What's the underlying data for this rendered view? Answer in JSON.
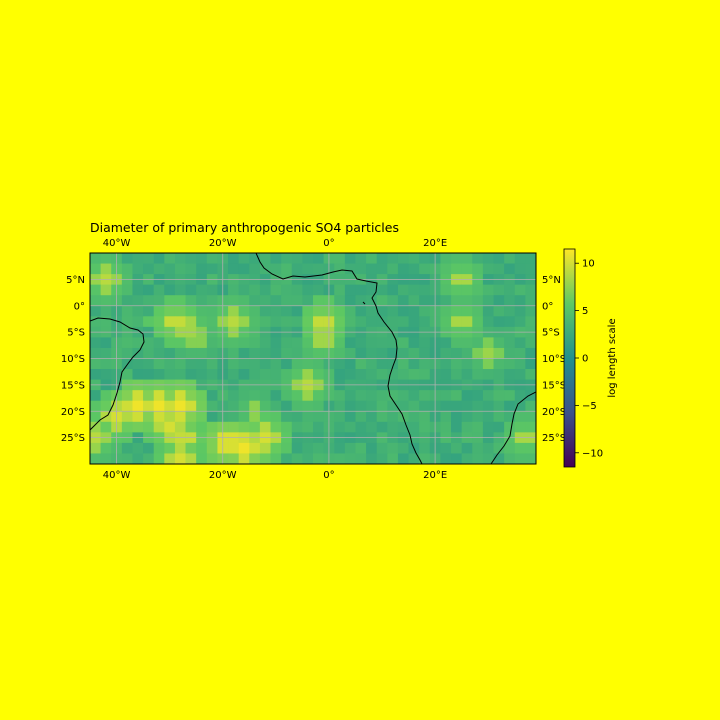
{
  "figure": {
    "background": "#ffff00",
    "title": "Diameter of primary anthropogenic SO4 particles"
  },
  "map": {
    "projection": "PlateCarree",
    "extent": {
      "lon": [
        -45,
        39
      ],
      "lat": [
        -30,
        10
      ]
    },
    "grid_lines": true,
    "grid_color": "#b0b0b0",
    "coastline_color": "#000000",
    "cell_size_deg": 2,
    "lon_ticks": [
      {
        "value": -40,
        "label": "40°W"
      },
      {
        "value": -20,
        "label": "20°W"
      },
      {
        "value": 0,
        "label": "0°"
      },
      {
        "value": 20,
        "label": "20°E"
      }
    ],
    "lat_ticks": [
      {
        "value": 5,
        "label": "5°N"
      },
      {
        "value": 0,
        "label": "0°"
      },
      {
        "value": -5,
        "label": "5°S"
      },
      {
        "value": -10,
        "label": "10°S"
      },
      {
        "value": -15,
        "label": "15°S"
      },
      {
        "value": -20,
        "label": "20°S"
      },
      {
        "value": -25,
        "label": "25°S"
      }
    ],
    "field_base_value": 3,
    "hotspots": [
      {
        "lon": -42,
        "lat": 5,
        "value": 9
      },
      {
        "lon": -33,
        "lat": -3,
        "value": 6
      },
      {
        "lon": -29,
        "lat": -3,
        "value": 10
      },
      {
        "lon": -27,
        "lat": -4,
        "value": 9
      },
      {
        "lon": -25,
        "lat": -6,
        "value": 8
      },
      {
        "lon": -18,
        "lat": -3,
        "value": 9
      },
      {
        "lon": -1,
        "lat": -3,
        "value": 10
      },
      {
        "lon": -1,
        "lat": -6,
        "value": 9
      },
      {
        "lon": 25,
        "lat": 5,
        "value": 9
      },
      {
        "lon": 25,
        "lat": -3,
        "value": 9
      },
      {
        "lon": 30,
        "lat": -9,
        "value": 8
      },
      {
        "lon": -4,
        "lat": -15,
        "value": 9
      },
      {
        "lon": -36,
        "lat": -19,
        "value": 11
      },
      {
        "lon": -32,
        "lat": -19,
        "value": 11
      },
      {
        "lon": -28,
        "lat": -19,
        "value": 11
      },
      {
        "lon": -40,
        "lat": -21,
        "value": 10
      },
      {
        "lon": -30,
        "lat": -23,
        "value": 10
      },
      {
        "lon": -27,
        "lat": -25,
        "value": 10
      },
      {
        "lon": -19,
        "lat": -26,
        "value": 11
      },
      {
        "lon": -16,
        "lat": -27,
        "value": 11
      },
      {
        "lon": -12,
        "lat": -25,
        "value": 10
      },
      {
        "lon": -28,
        "lat": -29,
        "value": 10
      },
      {
        "lon": -44,
        "lat": -25,
        "value": 9
      },
      {
        "lon": -14,
        "lat": -20,
        "value": 8
      },
      {
        "lon": 37,
        "lat": -25,
        "value": 9
      }
    ]
  },
  "colorbar": {
    "label": "log length scale",
    "colormap": "viridis",
    "range": [
      -11.5,
      11.5
    ],
    "ticks": [
      {
        "value": 10,
        "label": "10"
      },
      {
        "value": 5,
        "label": "5"
      },
      {
        "value": 0,
        "label": "0"
      },
      {
        "value": -5,
        "label": "−5"
      },
      {
        "value": -10,
        "label": "−10"
      }
    ]
  }
}
